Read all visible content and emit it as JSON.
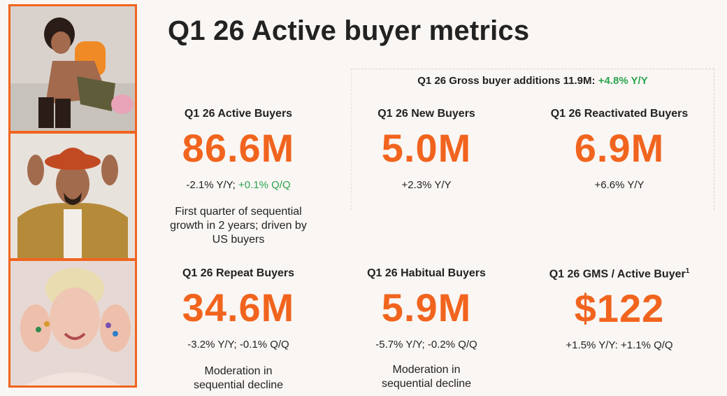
{
  "title": "Q1 26 Active buyer metrics",
  "gross": {
    "label": "Q1 26 Gross buyer additions 11.9M:",
    "change": "+4.8% Y/Y"
  },
  "metrics": {
    "active": {
      "label": "Q1 26 Active Buyers",
      "value": "86.6M",
      "change_neutral": "-2.1% Y/Y;",
      "change_positive": "+0.1% Q/Q",
      "note": "First quarter of sequential growth in 2 years; driven by US buyers"
    },
    "new": {
      "label": "Q1 26 New Buyers",
      "value": "5.0M",
      "change_positive": "+2.3% Y/Y"
    },
    "reactivated": {
      "label": "Q1 26 Reactivated Buyers",
      "value": "6.9M",
      "change_positive": "+6.6% Y/Y"
    },
    "repeat": {
      "label": "Q1 26 Repeat Buyers",
      "value": "34.6M",
      "change_neutral": "-3.2% Y/Y; -0.1% Q/Q",
      "note": "Moderation in sequential decline"
    },
    "habitual": {
      "label": "Q1 26 Habitual Buyers",
      "value": "5.9M",
      "change_neutral": "-5.7% Y/Y; -0.2% Q/Q",
      "note": "Moderation in sequential decline"
    },
    "gms": {
      "label": "Q1 26 GMS / Active Buyer",
      "footnote": "1",
      "value": "$122",
      "change_positive": "+1.5% Y/Y: +1.1% Q/Q"
    }
  },
  "colors": {
    "accent": "#f1641e",
    "positive": "#2aa44f",
    "frame": "#f1641e"
  }
}
